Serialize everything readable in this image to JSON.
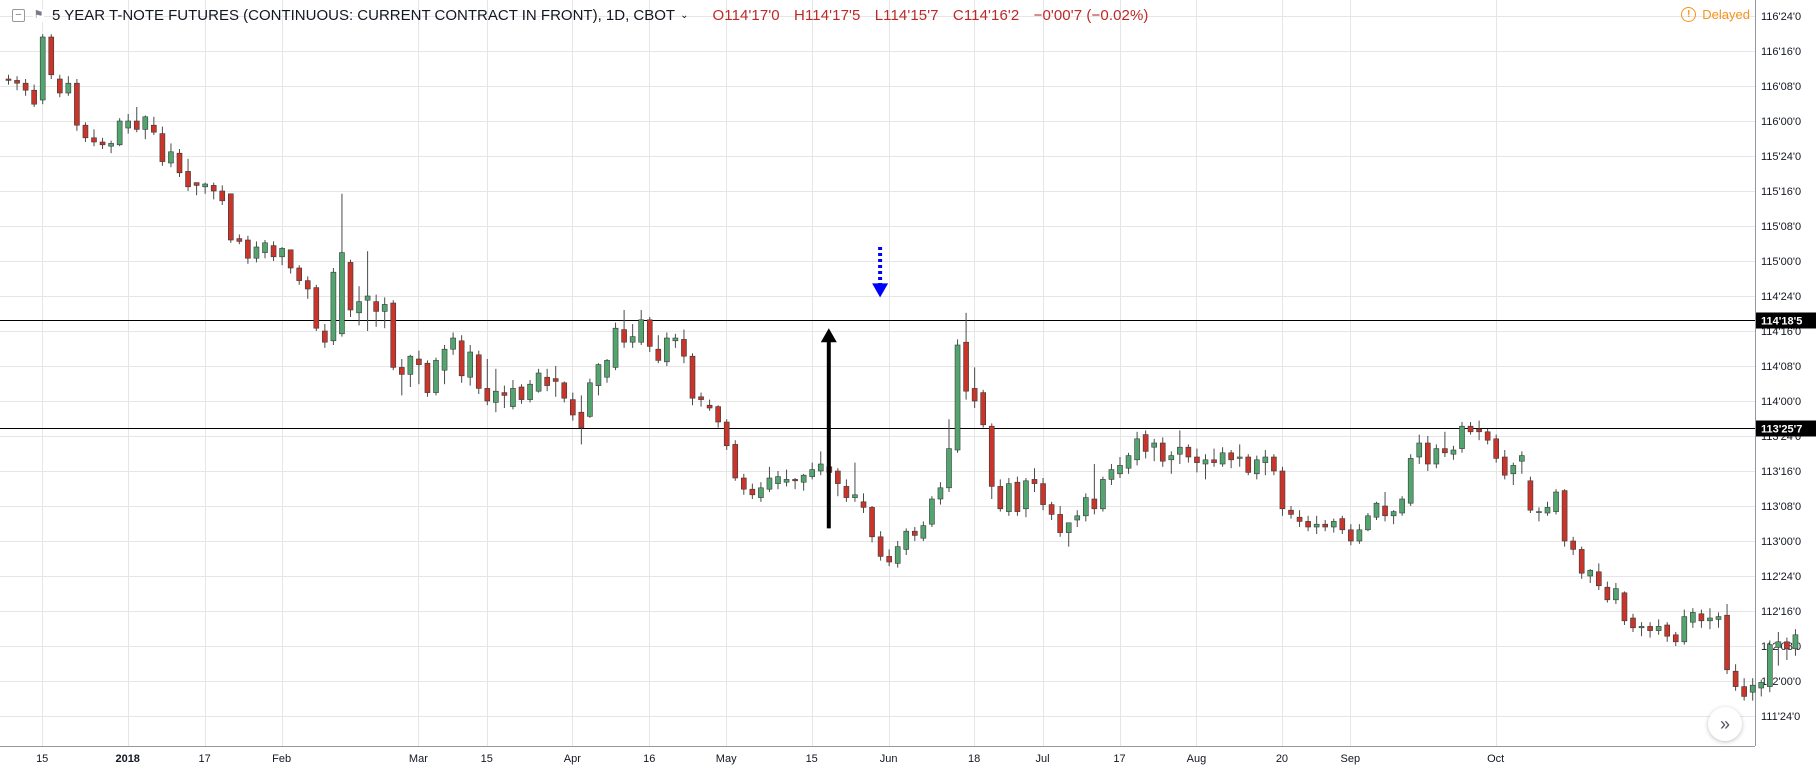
{
  "header": {
    "title": "5 YEAR T-NOTE FUTURES (CONTINUOUS: CURRENT CONTRACT IN FRONT), 1D, CBOT",
    "open": "O114'17'0",
    "high": "H114'17'5",
    "low": "L114'15'7",
    "close": "C114'16'2",
    "change": "−0'00'7 (−0.02%)",
    "delayed": "Delayed",
    "delayed_icon": "info-icon",
    "collapse_icon": "minus-square-icon",
    "format_icon": "flag-icon"
  },
  "scroll_button": "»",
  "colors": {
    "up": "#53a570",
    "down": "#c9352b",
    "ohlc_text": "#bb2a27",
    "delayed": "#f7931a",
    "grid": "#e6e6e6",
    "level_line": "#000000",
    "arrow_solid": "#000000",
    "arrow_dotted": "#0000ff"
  },
  "chart_data": {
    "type": "candlestick",
    "price_scale_note": "Prices in points and 32nds; plotted as decimal points (e.g. 114'18'5 = 114.58)",
    "ylim": [
      111.72,
      116.78
    ],
    "y_tick_labels": [
      "111'24'0",
      "112'00'0",
      "112'08'0",
      "112'16'0",
      "112'24'0",
      "113'00'0",
      "113'08'0",
      "113'16'0",
      "113'24'0",
      "114'00'0",
      "114'08'0",
      "114'16'0",
      "114'24'0",
      "115'00'0",
      "115'08'0",
      "115'16'0",
      "115'24'0",
      "116'00'0",
      "116'08'0",
      "116'16'0",
      "116'24'0"
    ],
    "y_tick_values": [
      111.75,
      112.0,
      112.25,
      112.5,
      112.75,
      113.0,
      113.25,
      113.5,
      113.75,
      114.0,
      114.25,
      114.5,
      114.75,
      115.0,
      115.25,
      115.5,
      115.75,
      116.0,
      116.25,
      116.5,
      116.75
    ],
    "x_labels": [
      "15",
      "2018",
      "17",
      "Feb",
      "Mar",
      "15",
      "Apr",
      "16",
      "May",
      "15",
      "Jun",
      "18",
      "Jul",
      "17",
      "Aug",
      "20",
      "Sep",
      "Oct"
    ],
    "x_label_index": [
      4,
      14,
      23,
      32,
      48,
      56,
      66,
      75,
      84,
      94,
      103,
      113,
      121,
      130,
      139,
      149,
      157,
      174
    ],
    "horizontal_levels": [
      {
        "label": "114'18'5",
        "value": 114.578
      },
      {
        "label": "113'25'7",
        "value": 113.809
      }
    ],
    "annotations": [
      {
        "type": "arrow-up",
        "style": "solid",
        "from": 113.09,
        "to": 114.52,
        "index": 96
      },
      {
        "type": "arrow-down",
        "style": "dotted",
        "from": 115.1,
        "to": 114.74,
        "index": 102
      }
    ],
    "ohlc": [
      [
        116.3,
        116.33,
        116.26,
        116.29
      ],
      [
        116.29,
        116.32,
        116.22,
        116.27
      ],
      [
        116.27,
        116.3,
        116.18,
        116.22
      ],
      [
        116.22,
        116.26,
        116.1,
        116.12
      ],
      [
        116.15,
        116.62,
        116.12,
        116.6
      ],
      [
        116.6,
        116.62,
        116.3,
        116.33
      ],
      [
        116.3,
        116.33,
        116.17,
        116.2
      ],
      [
        116.2,
        116.32,
        116.18,
        116.27
      ],
      [
        116.27,
        116.3,
        115.93,
        115.97
      ],
      [
        115.97,
        115.99,
        115.85,
        115.88
      ],
      [
        115.88,
        115.94,
        115.82,
        115.85
      ],
      [
        115.85,
        115.88,
        115.8,
        115.83
      ],
      [
        115.82,
        115.86,
        115.77,
        115.84
      ],
      [
        115.83,
        116.02,
        115.82,
        116.0
      ],
      [
        115.95,
        116.05,
        115.91,
        116.0
      ],
      [
        116.0,
        116.1,
        115.92,
        115.94
      ],
      [
        115.94,
        116.04,
        115.87,
        116.03
      ],
      [
        115.97,
        116.03,
        115.9,
        115.92
      ],
      [
        115.91,
        115.96,
        115.68,
        115.71
      ],
      [
        115.7,
        115.84,
        115.67,
        115.78
      ],
      [
        115.77,
        115.8,
        115.6,
        115.63
      ],
      [
        115.64,
        115.73,
        115.5,
        115.53
      ],
      [
        115.56,
        115.56,
        115.47,
        115.54
      ],
      [
        115.53,
        115.56,
        115.48,
        115.55
      ],
      [
        115.54,
        115.56,
        115.44,
        115.5
      ],
      [
        115.5,
        115.54,
        115.4,
        115.43
      ],
      [
        115.48,
        115.48,
        115.13,
        115.15
      ],
      [
        115.16,
        115.19,
        115.12,
        115.14
      ],
      [
        115.15,
        115.18,
        114.98,
        115.02
      ],
      [
        115.02,
        115.14,
        114.99,
        115.1
      ],
      [
        115.06,
        115.15,
        115.02,
        115.13
      ],
      [
        115.11,
        115.14,
        115.0,
        115.03
      ],
      [
        115.03,
        115.1,
        114.97,
        115.09
      ],
      [
        115.08,
        115.08,
        114.91,
        114.95
      ],
      [
        114.95,
        114.97,
        114.83,
        114.86
      ],
      [
        114.86,
        114.89,
        114.73,
        114.8
      ],
      [
        114.81,
        114.83,
        114.5,
        114.52
      ],
      [
        114.5,
        114.55,
        114.38,
        114.42
      ],
      [
        114.43,
        114.95,
        114.4,
        114.92
      ],
      [
        114.48,
        115.48,
        114.46,
        115.06
      ],
      [
        114.99,
        115.01,
        114.6,
        114.65
      ],
      [
        114.63,
        114.82,
        114.54,
        114.71
      ],
      [
        114.72,
        115.07,
        114.5,
        114.75
      ],
      [
        114.71,
        114.76,
        114.53,
        114.64
      ],
      [
        114.64,
        114.74,
        114.52,
        114.69
      ],
      [
        114.7,
        114.72,
        114.22,
        114.24
      ],
      [
        114.24,
        114.3,
        114.04,
        114.19
      ],
      [
        114.19,
        114.33,
        114.1,
        114.32
      ],
      [
        114.3,
        114.36,
        114.12,
        114.26
      ],
      [
        114.27,
        114.29,
        114.03,
        114.06
      ],
      [
        114.06,
        114.31,
        114.04,
        114.29
      ],
      [
        114.22,
        114.4,
        114.12,
        114.37
      ],
      [
        114.37,
        114.49,
        114.33,
        114.45
      ],
      [
        114.43,
        114.47,
        114.13,
        114.18
      ],
      [
        114.17,
        114.4,
        114.11,
        114.35
      ],
      [
        114.33,
        114.36,
        114.05,
        114.09
      ],
      [
        114.09,
        114.3,
        113.97,
        114.0
      ],
      [
        113.99,
        114.23,
        113.92,
        114.07
      ],
      [
        114.06,
        114.11,
        113.95,
        114.04
      ],
      [
        113.96,
        114.15,
        113.94,
        114.09
      ],
      [
        114.1,
        114.12,
        113.98,
        114.01
      ],
      [
        114.01,
        114.15,
        113.99,
        114.12
      ],
      [
        114.07,
        114.23,
        114.06,
        114.2
      ],
      [
        114.17,
        114.23,
        114.07,
        114.11
      ],
      [
        114.16,
        114.25,
        114.03,
        114.14
      ],
      [
        114.13,
        114.14,
        113.99,
        114.02
      ],
      [
        114.01,
        114.06,
        113.86,
        113.9
      ],
      [
        113.92,
        114.04,
        113.69,
        113.81
      ],
      [
        113.89,
        114.16,
        113.88,
        114.13
      ],
      [
        114.11,
        114.27,
        114.04,
        114.26
      ],
      [
        114.17,
        114.3,
        114.13,
        114.29
      ],
      [
        114.24,
        114.56,
        114.22,
        114.52
      ],
      [
        114.51,
        114.65,
        114.38,
        114.42
      ],
      [
        114.42,
        114.55,
        114.38,
        114.46
      ],
      [
        114.42,
        114.65,
        114.4,
        114.58
      ],
      [
        114.58,
        114.6,
        114.35,
        114.39
      ],
      [
        114.37,
        114.47,
        114.27,
        114.29
      ],
      [
        114.28,
        114.49,
        114.25,
        114.45
      ],
      [
        114.43,
        114.48,
        114.38,
        114.45
      ],
      [
        114.44,
        114.51,
        114.27,
        114.32
      ],
      [
        114.32,
        114.34,
        113.97,
        114.02
      ],
      [
        114.03,
        114.06,
        113.96,
        114.01
      ],
      [
        113.97,
        114.01,
        113.93,
        113.95
      ],
      [
        113.96,
        113.97,
        113.81,
        113.85
      ],
      [
        113.85,
        113.87,
        113.65,
        113.68
      ],
      [
        113.69,
        113.72,
        113.43,
        113.45
      ],
      [
        113.45,
        113.48,
        113.33,
        113.37
      ],
      [
        113.37,
        113.41,
        113.3,
        113.33
      ],
      [
        113.31,
        113.42,
        113.28,
        113.38
      ],
      [
        113.37,
        113.53,
        113.35,
        113.45
      ],
      [
        113.41,
        113.5,
        113.37,
        113.46
      ],
      [
        113.42,
        113.51,
        113.39,
        113.44
      ],
      [
        113.44,
        113.45,
        113.37,
        113.43
      ],
      [
        113.42,
        113.48,
        113.36,
        113.47
      ],
      [
        113.46,
        113.56,
        113.44,
        113.51
      ],
      [
        113.5,
        113.64,
        113.47,
        113.55
      ],
      [
        113.53,
        113.57,
        113.43,
        113.49
      ],
      [
        113.5,
        113.52,
        113.32,
        113.41
      ],
      [
        113.39,
        113.44,
        113.28,
        113.31
      ],
      [
        113.31,
        113.56,
        113.28,
        113.33
      ],
      [
        113.28,
        113.34,
        113.2,
        113.24
      ],
      [
        113.24,
        113.25,
        112.99,
        113.03
      ],
      [
        113.03,
        113.07,
        112.86,
        112.89
      ],
      [
        112.89,
        112.94,
        112.82,
        112.85
      ],
      [
        112.84,
        113.0,
        112.81,
        112.96
      ],
      [
        112.94,
        113.09,
        112.9,
        113.07
      ],
      [
        113.07,
        113.1,
        113.0,
        113.04
      ],
      [
        113.02,
        113.14,
        113.0,
        113.11
      ],
      [
        113.12,
        113.32,
        113.1,
        113.3
      ],
      [
        113.3,
        113.42,
        113.26,
        113.38
      ],
      [
        113.38,
        113.87,
        113.35,
        113.66
      ],
      [
        113.65,
        114.44,
        113.63,
        114.4
      ],
      [
        114.42,
        114.63,
        114.01,
        114.07
      ],
      [
        114.09,
        114.24,
        113.95,
        114.0
      ],
      [
        114.06,
        114.08,
        113.81,
        113.83
      ],
      [
        113.82,
        113.84,
        113.3,
        113.39
      ],
      [
        113.39,
        113.44,
        113.21,
        113.23
      ],
      [
        113.21,
        113.45,
        113.18,
        113.41
      ],
      [
        113.42,
        113.46,
        113.18,
        113.21
      ],
      [
        113.23,
        113.45,
        113.17,
        113.43
      ],
      [
        113.44,
        113.52,
        113.35,
        113.41
      ],
      [
        113.41,
        113.45,
        113.22,
        113.26
      ],
      [
        113.26,
        113.28,
        113.15,
        113.19
      ],
      [
        113.19,
        113.25,
        113.03,
        113.06
      ],
      [
        113.06,
        113.12,
        112.96,
        113.13
      ],
      [
        113.15,
        113.22,
        113.1,
        113.18
      ],
      [
        113.18,
        113.34,
        113.14,
        113.31
      ],
      [
        113.3,
        113.55,
        113.19,
        113.23
      ],
      [
        113.23,
        113.46,
        113.21,
        113.44
      ],
      [
        113.44,
        113.55,
        113.4,
        113.51
      ],
      [
        113.48,
        113.6,
        113.45,
        113.54
      ],
      [
        113.52,
        113.63,
        113.48,
        113.61
      ],
      [
        113.58,
        113.78,
        113.54,
        113.73
      ],
      [
        113.76,
        113.79,
        113.59,
        113.64
      ],
      [
        113.67,
        113.73,
        113.57,
        113.7
      ],
      [
        113.7,
        113.74,
        113.53,
        113.57
      ],
      [
        113.58,
        113.64,
        113.48,
        113.61
      ],
      [
        113.62,
        113.79,
        113.55,
        113.67
      ],
      [
        113.67,
        113.69,
        113.56,
        113.6
      ],
      [
        113.6,
        113.66,
        113.49,
        113.56
      ],
      [
        113.55,
        113.62,
        113.44,
        113.58
      ],
      [
        113.58,
        113.66,
        113.53,
        113.56
      ],
      [
        113.55,
        113.67,
        113.53,
        113.63
      ],
      [
        113.63,
        113.65,
        113.52,
        113.58
      ],
      [
        113.59,
        113.69,
        113.53,
        113.6
      ],
      [
        113.6,
        113.62,
        113.47,
        113.49
      ],
      [
        113.48,
        113.61,
        113.44,
        113.58
      ],
      [
        113.56,
        113.65,
        113.47,
        113.6
      ],
      [
        113.6,
        113.62,
        113.47,
        113.5
      ],
      [
        113.5,
        113.53,
        113.18,
        113.23
      ],
      [
        113.22,
        113.25,
        113.16,
        113.19
      ],
      [
        113.17,
        113.22,
        113.1,
        113.14
      ],
      [
        113.14,
        113.18,
        113.07,
        113.1
      ],
      [
        113.1,
        113.18,
        113.05,
        113.12
      ],
      [
        113.12,
        113.15,
        113.07,
        113.1
      ],
      [
        113.1,
        113.16,
        113.06,
        113.14
      ],
      [
        113.16,
        113.18,
        113.05,
        113.08
      ],
      [
        113.08,
        113.12,
        112.97,
        113.0
      ],
      [
        113.0,
        113.12,
        112.98,
        113.08
      ],
      [
        113.08,
        113.2,
        113.07,
        113.18
      ],
      [
        113.17,
        113.28,
        113.15,
        113.27
      ],
      [
        113.25,
        113.35,
        113.14,
        113.18
      ],
      [
        113.18,
        113.22,
        113.12,
        113.21
      ],
      [
        113.2,
        113.32,
        113.18,
        113.3
      ],
      [
        113.27,
        113.62,
        113.25,
        113.59
      ],
      [
        113.6,
        113.76,
        113.55,
        113.7
      ],
      [
        113.7,
        113.75,
        113.5,
        113.55
      ],
      [
        113.55,
        113.69,
        113.52,
        113.66
      ],
      [
        113.66,
        113.78,
        113.6,
        113.63
      ],
      [
        113.62,
        113.68,
        113.58,
        113.65
      ],
      [
        113.66,
        113.85,
        113.63,
        113.82
      ],
      [
        113.82,
        113.85,
        113.76,
        113.78
      ],
      [
        113.8,
        113.86,
        113.72,
        113.78
      ],
      [
        113.78,
        113.8,
        113.69,
        113.72
      ],
      [
        113.73,
        113.76,
        113.56,
        113.59
      ],
      [
        113.6,
        113.65,
        113.44,
        113.47
      ],
      [
        113.48,
        113.56,
        113.4,
        113.54
      ],
      [
        113.57,
        113.64,
        113.48,
        113.61
      ],
      [
        113.43,
        113.46,
        113.2,
        113.22
      ],
      [
        113.21,
        113.24,
        113.14,
        113.21
      ],
      [
        113.2,
        113.28,
        113.18,
        113.24
      ],
      [
        113.21,
        113.37,
        113.19,
        113.35
      ],
      [
        113.36,
        113.37,
        112.96,
        113.0
      ],
      [
        113.0,
        113.03,
        112.9,
        112.94
      ],
      [
        112.94,
        112.96,
        112.73,
        112.77
      ],
      [
        112.75,
        112.8,
        112.7,
        112.79
      ],
      [
        112.78,
        112.84,
        112.65,
        112.68
      ],
      [
        112.67,
        112.71,
        112.56,
        112.58
      ],
      [
        112.58,
        112.7,
        112.55,
        112.66
      ],
      [
        112.63,
        112.64,
        112.4,
        112.43
      ],
      [
        112.45,
        112.48,
        112.35,
        112.38
      ],
      [
        112.38,
        112.42,
        112.32,
        112.39
      ],
      [
        112.39,
        112.42,
        112.31,
        112.36
      ],
      [
        112.36,
        112.44,
        112.33,
        112.39
      ],
      [
        112.4,
        112.42,
        112.28,
        112.32
      ],
      [
        112.33,
        112.35,
        112.25,
        112.28
      ],
      [
        112.28,
        112.51,
        112.26,
        112.46
      ],
      [
        112.42,
        112.52,
        112.38,
        112.49
      ],
      [
        112.48,
        112.51,
        112.38,
        112.43
      ],
      [
        112.43,
        112.52,
        112.37,
        112.45
      ],
      [
        112.44,
        112.49,
        112.38,
        112.46
      ],
      [
        112.47,
        112.55,
        112.05,
        112.08
      ],
      [
        112.07,
        112.12,
        111.93,
        111.96
      ],
      [
        111.96,
        112.02,
        111.86,
        111.89
      ],
      [
        111.92,
        112.02,
        111.86,
        111.97
      ],
      [
        111.95,
        112.01,
        111.89,
        111.99
      ],
      [
        111.96,
        112.29,
        111.92,
        112.26
      ],
      [
        112.24,
        112.35,
        112.11,
        112.28
      ],
      [
        112.28,
        112.31,
        112.15,
        112.23
      ],
      [
        112.23,
        112.37,
        112.18,
        112.33
      ]
    ]
  }
}
